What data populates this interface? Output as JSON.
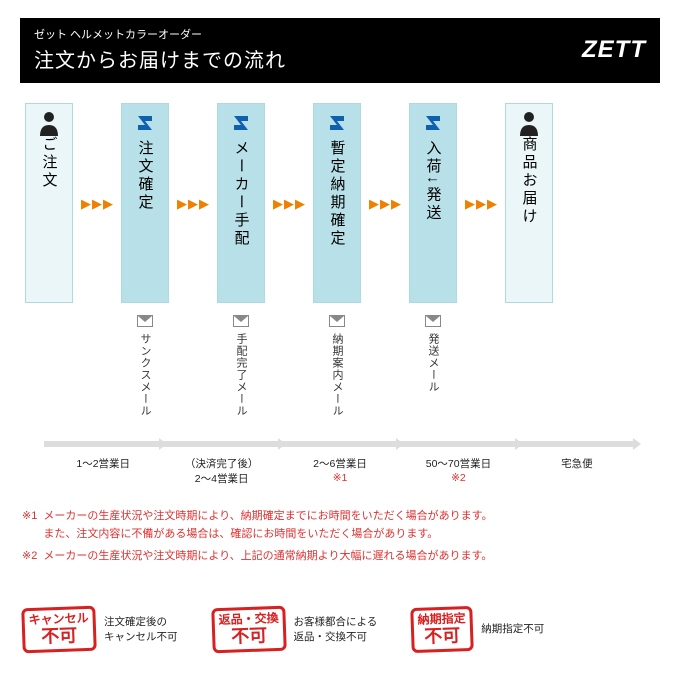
{
  "header": {
    "small": "ゼット ヘルメットカラーオーダー",
    "big": "注文からお届けまでの流れ",
    "brand": "ZETT"
  },
  "steps": [
    {
      "label": "ご注文",
      "type": "light",
      "icon": "person"
    },
    {
      "label": "注文確定",
      "type": "dark",
      "icon": "logo",
      "mail": "サンクスメール"
    },
    {
      "label": "メーカー手配",
      "type": "dark",
      "icon": "logo",
      "mail": "手配完了メール"
    },
    {
      "label": "暫定納期確定",
      "type": "dark",
      "icon": "logo",
      "mail": "納期案内メール"
    },
    {
      "label": "入荷↓発送",
      "type": "dark",
      "icon": "logo",
      "mail": "発送メール"
    },
    {
      "label": "商品お届け",
      "type": "light",
      "icon": "person"
    }
  ],
  "timeline": [
    {
      "label": "1～2営業日"
    },
    {
      "label": "（決済完了後）\n2～4営業日"
    },
    {
      "label": "2～6営業日",
      "note": "※1"
    },
    {
      "label": "50～70営業日",
      "note": "※2"
    },
    {
      "label": "宅急便"
    }
  ],
  "notes": [
    {
      "key": "※1",
      "text": "メーカーの生産状況や注文時期により、納期確定までにお時間をいただく場合があります。\nまた、注文内容に不備がある場合は、確認にお時間をいただく場合があります。"
    },
    {
      "key": "※2",
      "text": "メーカーの生産状況や注文時期により、上記の通常納期より大幅に遅れる場合があります。"
    }
  ],
  "stamps": [
    {
      "l1": "キャンセル",
      "l2": "不可",
      "desc": "注文確定後の\nキャンセル不可"
    },
    {
      "l1": "返品・交換",
      "l2": "不可",
      "desc": "お客様都合による\n返品・交換不可"
    },
    {
      "l1": "納期指定",
      "l2": "不可",
      "desc": "納期指定不可"
    }
  ],
  "colors": {
    "accent": "#f08000",
    "stamp": "#d92020",
    "boxLight": "#eaf6f8",
    "boxDark": "#b7e0e8"
  }
}
